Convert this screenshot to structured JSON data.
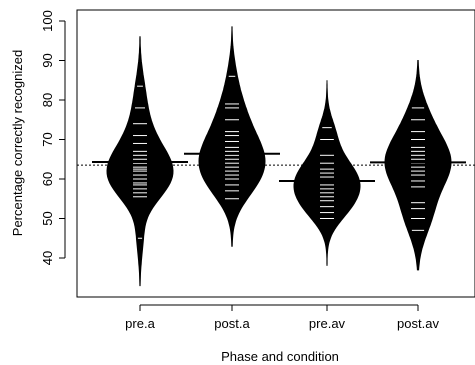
{
  "chart_data": {
    "type": "beanplot",
    "title": "",
    "xlabel": "Phase and condition",
    "ylabel": "Percentage correctly recognized",
    "ylim": [
      30,
      101
    ],
    "yticks": [
      40,
      50,
      60,
      70,
      80,
      90,
      100
    ],
    "ytick_labels": [
      "40",
      "50",
      "60",
      "70",
      "80",
      "90",
      "100"
    ],
    "categories": [
      "pre.a",
      "post.a",
      "pre.av",
      "post.av"
    ],
    "overall_mean": 63.5,
    "colors": {
      "bean": "#000000",
      "lines": "#ffffff",
      "mean_line": "#000000"
    },
    "series": [
      {
        "category": "pre.a",
        "range": [
          33,
          96
        ],
        "mean": 64.3,
        "observations": [
          45,
          55.5,
          56.5,
          57.5,
          58.5,
          59,
          60,
          61,
          62,
          62.5,
          63,
          64,
          65,
          66,
          67,
          69,
          71,
          74,
          78,
          83.5
        ]
      },
      {
        "category": "post.a",
        "range": [
          43,
          98.5
        ],
        "mean": 66.4,
        "observations": [
          55,
          57,
          58.5,
          60,
          61,
          62,
          63,
          64,
          65,
          66,
          67,
          68,
          69.5,
          71,
          72,
          75,
          78,
          79,
          86
        ]
      },
      {
        "category": "pre.av",
        "range": [
          38,
          85
        ],
        "mean": 59.5,
        "observations": [
          50,
          51.5,
          53,
          54.5,
          55.5,
          56.5,
          57.5,
          58.5,
          59.5,
          60.5,
          61.5,
          62.5,
          64,
          66,
          70,
          73
        ]
      },
      {
        "category": "post.av",
        "range": [
          37,
          90
        ],
        "mean": 64.2,
        "observations": [
          47,
          50,
          52.5,
          54,
          58,
          59.5,
          61,
          62,
          63,
          64,
          65,
          66,
          67,
          68,
          70,
          72,
          75,
          78
        ]
      }
    ]
  }
}
